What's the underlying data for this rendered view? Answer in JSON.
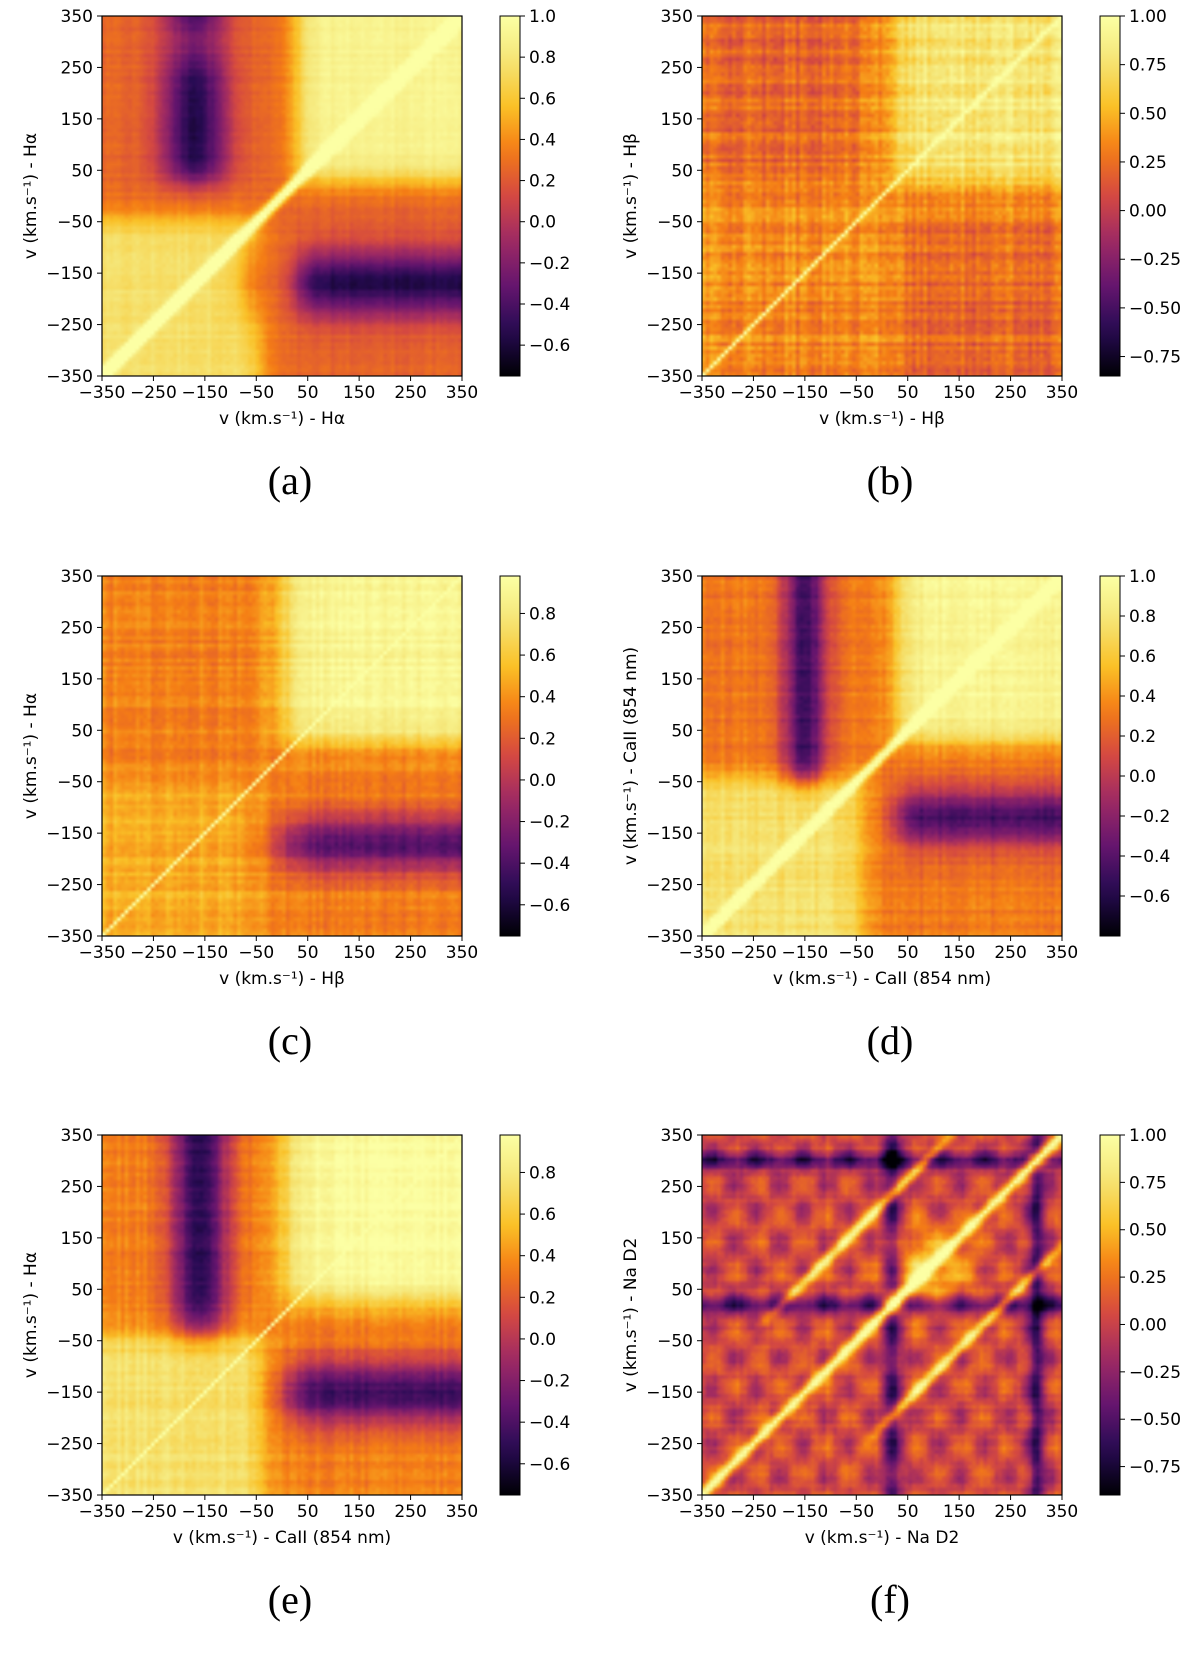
{
  "figure": {
    "description_note": "Six 2D velocity-velocity correlation heatmaps with colorbars (inferno colormap)."
  },
  "chart_data": [
    {
      "type": "heatmap",
      "caption": "(a)",
      "xlabel": "v (km.s⁻¹) - Hα",
      "ylabel": "v (km.s⁻¹) - Hα",
      "xlim": [
        -350,
        350
      ],
      "ylim": [
        -350,
        350
      ],
      "xticks": [
        "−350",
        "−250",
        "−150",
        "−50",
        "50",
        "150",
        "250",
        "350"
      ],
      "yticks": [
        "−350",
        "−250",
        "−150",
        "−50",
        "50",
        "150",
        "250",
        "350"
      ],
      "colorbar": {
        "min": -0.75,
        "max": 1.0,
        "ticks": [
          -0.6,
          -0.4,
          -0.2,
          0.0,
          0.2,
          0.4,
          0.6,
          0.8,
          1.0
        ],
        "tick_labels": [
          "−0.6",
          "−0.4",
          "−0.2",
          "0.0",
          "0.2",
          "0.4",
          "0.6",
          "0.8",
          "1.0"
        ]
      },
      "pattern": "a",
      "noise": 0.06
    },
    {
      "type": "heatmap",
      "caption": "(b)",
      "xlabel": "v (km.s⁻¹) - Hβ",
      "ylabel": "v (km.s⁻¹) - Hβ",
      "xlim": [
        -350,
        350
      ],
      "ylim": [
        -350,
        350
      ],
      "xticks": [
        "−350",
        "−250",
        "−150",
        "−50",
        "50",
        "150",
        "250",
        "350"
      ],
      "yticks": [
        "−350",
        "−250",
        "−150",
        "−50",
        "50",
        "150",
        "250",
        "350"
      ],
      "colorbar": {
        "min": -0.85,
        "max": 1.0,
        "ticks": [
          -0.75,
          -0.5,
          -0.25,
          0.0,
          0.25,
          0.5,
          0.75,
          1.0
        ],
        "tick_labels": [
          "−0.75",
          "−0.50",
          "−0.25",
          "0.00",
          "0.25",
          "0.50",
          "0.75",
          "1.00"
        ]
      },
      "pattern": "b",
      "noise": 0.18
    },
    {
      "type": "heatmap",
      "caption": "(c)",
      "xlabel": "v (km.s⁻¹) - Hβ",
      "ylabel": "v (km.s⁻¹) - Hα",
      "xlim": [
        -350,
        350
      ],
      "ylim": [
        -350,
        350
      ],
      "xticks": [
        "−350",
        "−250",
        "−150",
        "−50",
        "50",
        "150",
        "250",
        "350"
      ],
      "yticks": [
        "−350",
        "−250",
        "−150",
        "−50",
        "50",
        "150",
        "250",
        "350"
      ],
      "colorbar": {
        "min": -0.75,
        "max": 0.98,
        "ticks": [
          -0.6,
          -0.4,
          -0.2,
          0.0,
          0.2,
          0.4,
          0.6,
          0.8
        ],
        "tick_labels": [
          "−0.6",
          "−0.4",
          "−0.2",
          "0.0",
          "0.2",
          "0.4",
          "0.6",
          "0.8"
        ]
      },
      "pattern": "c",
      "noise": 0.1
    },
    {
      "type": "heatmap",
      "caption": "(d)",
      "xlabel": "v (km.s⁻¹) - CaII (854 nm)",
      "ylabel": "v (km.s⁻¹) - CaII (854 nm)",
      "xlim": [
        -350,
        350
      ],
      "ylim": [
        -350,
        350
      ],
      "xticks": [
        "−350",
        "−250",
        "−150",
        "−50",
        "50",
        "150",
        "250",
        "350"
      ],
      "yticks": [
        "−350",
        "−250",
        "−150",
        "−50",
        "50",
        "150",
        "250",
        "350"
      ],
      "colorbar": {
        "min": -0.8,
        "max": 1.0,
        "ticks": [
          -0.6,
          -0.4,
          -0.2,
          0.0,
          0.2,
          0.4,
          0.6,
          0.8,
          1.0
        ],
        "tick_labels": [
          "−0.6",
          "−0.4",
          "−0.2",
          "0.0",
          "0.2",
          "0.4",
          "0.6",
          "0.8",
          "1.0"
        ]
      },
      "pattern": "d",
      "noise": 0.1
    },
    {
      "type": "heatmap",
      "caption": "(e)",
      "xlabel": "v (km.s⁻¹) - CaII (854 nm)",
      "ylabel": "v (km.s⁻¹) - Hα",
      "xlim": [
        -350,
        350
      ],
      "ylim": [
        -350,
        350
      ],
      "xticks": [
        "−350",
        "−250",
        "−150",
        "−50",
        "50",
        "150",
        "250",
        "350"
      ],
      "yticks": [
        "−350",
        "−250",
        "−150",
        "−50",
        "50",
        "150",
        "250",
        "350"
      ],
      "colorbar": {
        "min": -0.75,
        "max": 0.98,
        "ticks": [
          -0.6,
          -0.4,
          -0.2,
          0.0,
          0.2,
          0.4,
          0.6,
          0.8
        ],
        "tick_labels": [
          "−0.6",
          "−0.4",
          "−0.2",
          "0.0",
          "0.2",
          "0.4",
          "0.6",
          "0.8"
        ]
      },
      "pattern": "e",
      "noise": 0.09
    },
    {
      "type": "heatmap",
      "caption": "(f)",
      "xlabel": "v (km.s⁻¹) - Na D2",
      "ylabel": "v (km.s⁻¹) - Na D2",
      "xlim": [
        -350,
        350
      ],
      "ylim": [
        -350,
        350
      ],
      "xticks": [
        "−350",
        "−250",
        "−150",
        "−50",
        "50",
        "150",
        "250",
        "350"
      ],
      "yticks": [
        "−350",
        "−250",
        "−150",
        "−50",
        "50",
        "150",
        "250",
        "350"
      ],
      "colorbar": {
        "min": -0.9,
        "max": 1.0,
        "ticks": [
          -0.75,
          -0.5,
          -0.25,
          0.0,
          0.25,
          0.5,
          0.75,
          1.0
        ],
        "tick_labels": [
          "−0.75",
          "−0.50",
          "−0.25",
          "0.00",
          "0.25",
          "0.50",
          "0.75",
          "1.00"
        ]
      },
      "pattern": "f",
      "noise": 0.12
    }
  ]
}
